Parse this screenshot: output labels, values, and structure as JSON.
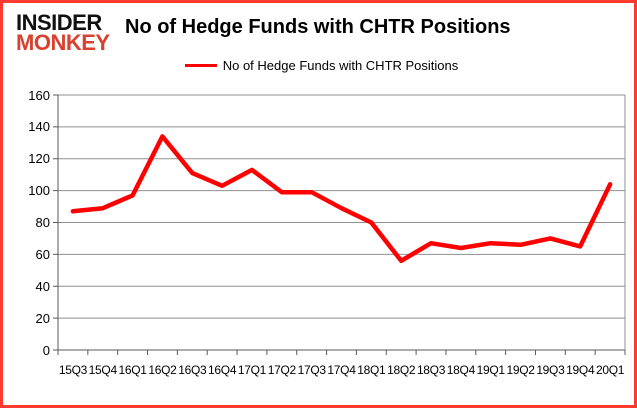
{
  "header": {
    "logo_line1": "INSIDER",
    "logo_line2": "MONKEY",
    "title": "No of Hedge Funds with CHTR Positions"
  },
  "legend": {
    "label": "No of Hedge Funds with CHTR Positions"
  },
  "colors": {
    "brand_black": "#111111",
    "brand_red": "#d8412f",
    "line_red": "#ff0000",
    "gridline_gray": "#8f8f8f",
    "axis_gray": "#595959",
    "frame_red": "#ff3b30",
    "text_black": "#000000"
  },
  "chart_data": {
    "type": "line",
    "title": "No of Hedge Funds with CHTR Positions",
    "categories": [
      "15Q3",
      "15Q4",
      "16Q1",
      "16Q2",
      "16Q3",
      "16Q4",
      "17Q1",
      "17Q2",
      "17Q3",
      "17Q4",
      "18Q1",
      "18Q2",
      "18Q3",
      "18Q4",
      "19Q1",
      "19Q2",
      "19Q3",
      "19Q4",
      "20Q1"
    ],
    "series": [
      {
        "name": "No of Hedge Funds with CHTR Positions",
        "color": "#ff0000",
        "values": [
          87,
          89,
          97,
          134,
          111,
          103,
          113,
          99,
          99,
          89,
          80,
          56,
          67,
          64,
          67,
          66,
          70,
          65,
          104
        ]
      }
    ],
    "xlabel": "",
    "ylabel": "",
    "ylim": [
      0,
      160
    ],
    "ytick_step": 20,
    "grid": true,
    "legend_position": "top-center"
  }
}
